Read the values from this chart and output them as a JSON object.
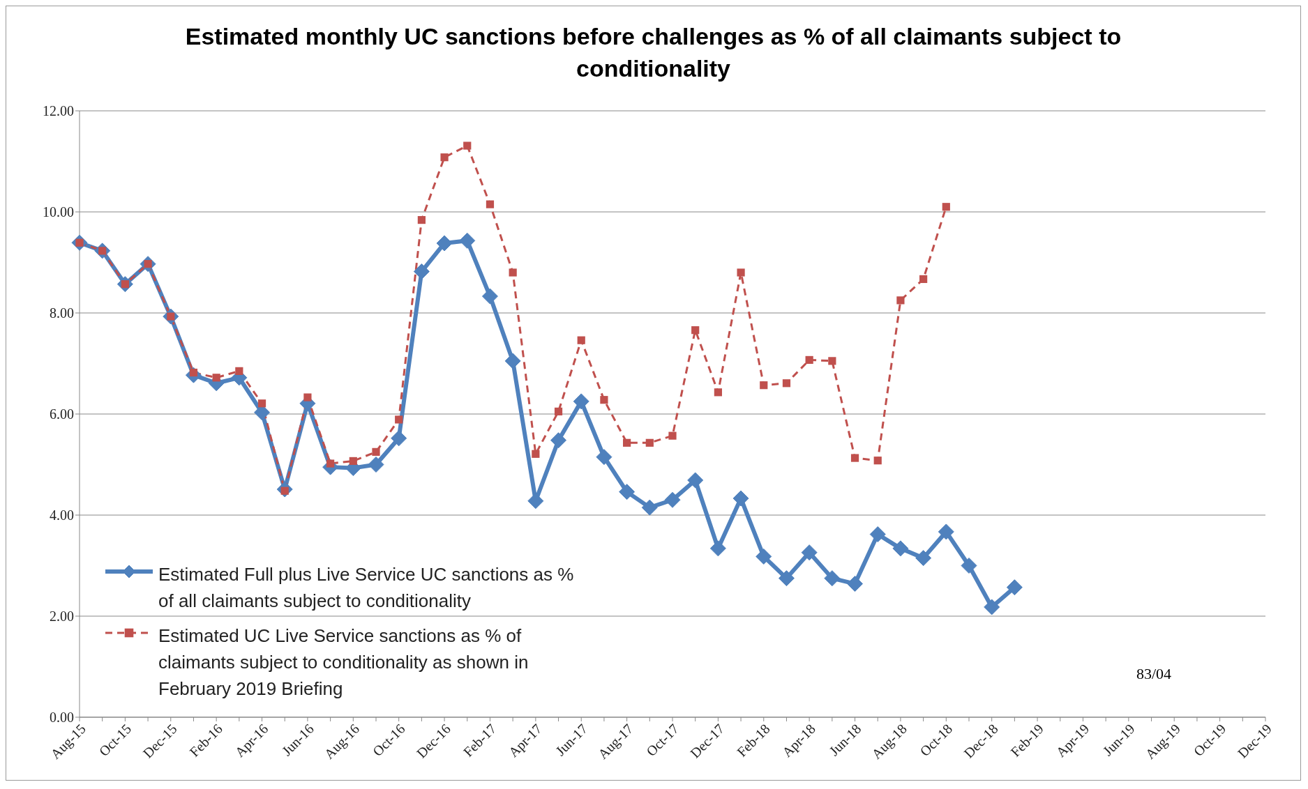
{
  "chart_data": {
    "type": "line",
    "title": "Estimated monthly UC sanctions before challenges as % of all claimants subject to conditionality",
    "categories": [
      "Aug-15",
      null,
      "Oct-15",
      null,
      "Dec-15",
      null,
      "Feb-16",
      null,
      "Apr-16",
      null,
      "Jun-16",
      null,
      "Aug-16",
      null,
      "Oct-16",
      null,
      "Dec-16",
      null,
      "Feb-17",
      null,
      "Apr-17",
      null,
      "Jun-17",
      null,
      "Aug-17",
      null,
      "Oct-17",
      null,
      "Dec-17",
      null,
      "Feb-18",
      null,
      "Apr-18",
      null,
      "Jun-18",
      null,
      "Aug-18",
      null,
      "Oct-18",
      null,
      "Dec-18",
      null,
      "Feb-19",
      null,
      "Apr-19",
      null,
      "Jun-19",
      null,
      "Aug-19",
      null,
      "Oct-19",
      null,
      "Dec-19"
    ],
    "series": [
      {
        "name": "Estimated Full plus Live Service UC sanctions as % of all claimants subject to conditionality",
        "color": "#4f81bd",
        "marker": "diamond",
        "line_style": "solid",
        "values": [
          9.39,
          9.23,
          8.57,
          8.97,
          7.93,
          6.77,
          6.61,
          6.72,
          6.03,
          4.51,
          6.21,
          4.95,
          4.93,
          5.0,
          5.52,
          8.82,
          9.38,
          9.43,
          8.33,
          7.05,
          4.28,
          5.48,
          6.25,
          5.15,
          4.46,
          4.15,
          4.3,
          4.69,
          3.34,
          4.33,
          3.18,
          2.75,
          3.26,
          2.75,
          2.64,
          3.62,
          3.34,
          3.15,
          3.67,
          3.0,
          2.18,
          2.57,
          null,
          null,
          null,
          null,
          null,
          null,
          null,
          null,
          null,
          null,
          null
        ]
      },
      {
        "name": "Estimated UC Live Service sanctions as % of claimants subject to conditionality as shown in February 2019 Briefing",
        "color": "#c0504d",
        "marker": "square",
        "line_style": "dashed",
        "values": [
          9.39,
          9.23,
          8.57,
          8.97,
          7.93,
          6.82,
          6.72,
          6.85,
          6.21,
          4.48,
          6.33,
          5.02,
          5.07,
          5.25,
          5.89,
          9.84,
          11.08,
          11.31,
          10.15,
          8.8,
          5.21,
          6.05,
          7.46,
          6.28,
          5.43,
          5.43,
          5.57,
          7.66,
          6.43,
          8.8,
          6.57,
          6.61,
          7.07,
          7.05,
          5.13,
          5.08,
          8.25,
          8.67,
          10.1,
          null,
          null,
          null,
          null,
          null,
          null,
          null,
          null,
          null,
          null,
          null,
          null,
          null,
          null
        ]
      }
    ],
    "ylim": [
      0,
      12
    ],
    "yticks": [
      {
        "value": 0,
        "label": "0.00"
      },
      {
        "value": 2,
        "label": "2.00"
      },
      {
        "value": 4,
        "label": "4.00"
      },
      {
        "value": 6,
        "label": "6.00"
      },
      {
        "value": 8,
        "label": "8.00"
      },
      {
        "value": 10,
        "label": "10.00"
      },
      {
        "value": 12,
        "label": "12.00"
      }
    ],
    "grid": "y",
    "legend": "bottom left",
    "annotations": [
      "83/04"
    ]
  }
}
